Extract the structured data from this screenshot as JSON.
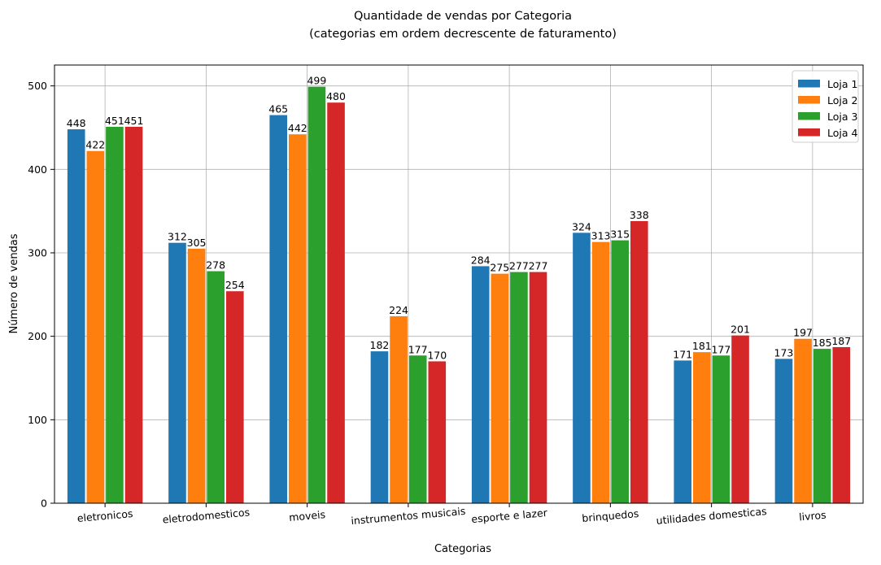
{
  "chart_data": {
    "type": "bar",
    "title": "Quantidade de vendas por Categoria",
    "subtitle": "(categorias em ordem decrescente de faturamento)",
    "xlabel": "Categorias",
    "ylabel": "Número de vendas",
    "ylim": [
      0,
      525
    ],
    "yticks": [
      0,
      100,
      200,
      300,
      400,
      500
    ],
    "grid": true,
    "legend_position": "top-right",
    "categories": [
      "eletronicos",
      "eletrodomesticos",
      "moveis",
      "instrumentos musicais",
      "esporte e lazer",
      "brinquedos",
      "utilidades domesticas",
      "livros"
    ],
    "series": [
      {
        "name": "Loja 1",
        "color": "#1f77b4",
        "values": [
          448,
          312,
          465,
          182,
          284,
          324,
          171,
          173
        ]
      },
      {
        "name": "Loja 2",
        "color": "#ff7f0e",
        "values": [
          422,
          305,
          442,
          224,
          275,
          313,
          181,
          197
        ]
      },
      {
        "name": "Loja 3",
        "color": "#2ca02c",
        "values": [
          451,
          278,
          499,
          177,
          277,
          315,
          177,
          185
        ]
      },
      {
        "name": "Loja 4",
        "color": "#d62728",
        "values": [
          451,
          254,
          480,
          170,
          277,
          338,
          201,
          187
        ]
      }
    ]
  }
}
